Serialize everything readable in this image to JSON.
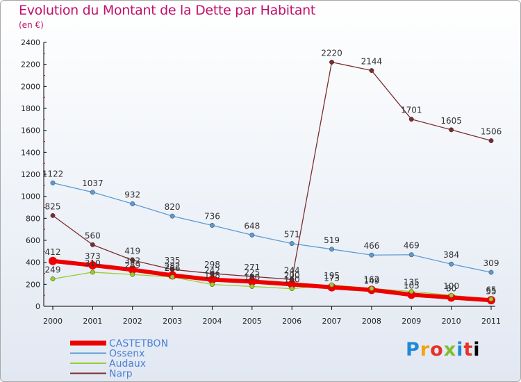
{
  "header": {
    "title": "Evolution du Montant de la Dette par Habitant",
    "subtitle": "(en €)"
  },
  "logo": {
    "letters": [
      "P",
      "r",
      "o",
      "x",
      "i",
      "t",
      "i"
    ]
  },
  "chart_data": {
    "type": "line",
    "x": [
      "2000",
      "2001",
      "2002",
      "2003",
      "2004",
      "2005",
      "2006",
      "2007",
      "2008",
      "2009",
      "2010",
      "2011"
    ],
    "ylim": [
      0,
      2400
    ],
    "yticks": [
      0,
      200,
      400,
      600,
      800,
      1000,
      1200,
      1400,
      1600,
      1800,
      2000,
      2200,
      2400
    ],
    "grid": false,
    "legend_position": "bottom-left",
    "series": [
      {
        "name": "CASTETBON",
        "color": "#ee0000",
        "values": [
          412,
          373,
          332,
          282,
          242,
          225,
          200,
          173,
          149,
          105,
          80,
          55
        ]
      },
      {
        "name": "Ossenx",
        "color": "#5b9bd5",
        "values": [
          1122,
          1037,
          932,
          820,
          736,
          648,
          571,
          519,
          466,
          469,
          384,
          309
        ]
      },
      {
        "name": "Audaux",
        "color": "#9acd32",
        "values": [
          249,
          310,
          289,
          266,
          198,
          180,
          160,
          195,
          162,
          135,
          100,
          65
        ]
      },
      {
        "name": "Narp",
        "color": "#7b2d2d",
        "values": [
          825,
          560,
          419,
          335,
          298,
          271,
          244,
          2220,
          2144,
          1701,
          1605,
          1506
        ]
      }
    ]
  }
}
